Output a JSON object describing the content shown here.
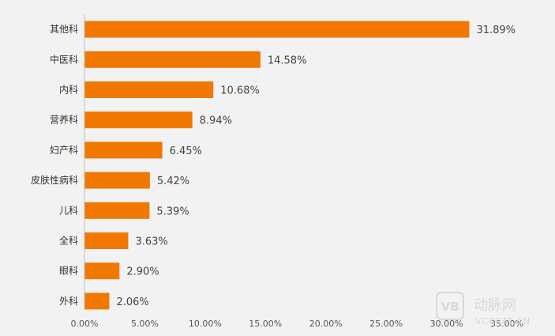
{
  "chart_data": {
    "type": "bar",
    "orientation": "horizontal",
    "categories": [
      "其他科",
      "中医科",
      "内科",
      "营养科",
      "妇产科",
      "皮肤性病科",
      "儿科",
      "全科",
      "眼科",
      "外科"
    ],
    "values": [
      31.89,
      14.58,
      10.68,
      8.94,
      6.45,
      5.42,
      5.39,
      3.63,
      2.9,
      2.06
    ],
    "value_labels": [
      "31.89%",
      "14.58%",
      "10.68%",
      "8.94%",
      "6.45%",
      "5.42%",
      "5.39%",
      "3.63%",
      "2.90%",
      "2.06%"
    ],
    "x_ticks": [
      "0.00%",
      "5.00%",
      "10.00%",
      "15.00%",
      "20.00%",
      "25.00%",
      "30.00%",
      "35.00%"
    ],
    "xlim": [
      0,
      35
    ],
    "title": "",
    "xlabel": "",
    "ylabel": "",
    "grid": false,
    "legend": "none",
    "bar_color": "#f07800",
    "axis_color": "#bfbfbf",
    "background": "#f2f2f2"
  },
  "watermark": {
    "logo_text": "VB",
    "brand": "动脉网",
    "url": "VCBEAT.CN"
  }
}
